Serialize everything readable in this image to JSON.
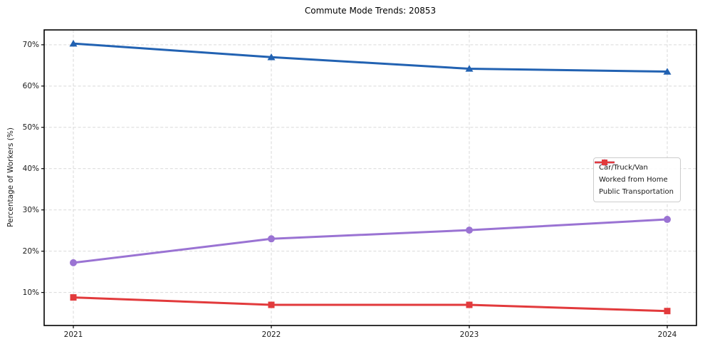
{
  "chart_data": {
    "type": "line",
    "title": "Commute Mode Trends: 20853",
    "ylabel": "Percentage of Workers (%)",
    "xlabel": "",
    "categories": [
      "2021",
      "2022",
      "2023",
      "2024"
    ],
    "series": [
      {
        "name": "Car/Truck/Van",
        "color": "#2262b2",
        "marker": "triangle",
        "values": [
          70.3,
          67.0,
          64.2,
          63.5
        ]
      },
      {
        "name": "Worked from Home",
        "color": "#9a73d3",
        "marker": "circle",
        "values": [
          17.2,
          23.0,
          25.1,
          27.7
        ]
      },
      {
        "name": "Public Transportation",
        "color": "#e23a3c",
        "marker": "square",
        "values": [
          8.8,
          7.0,
          7.0,
          5.5
        ]
      }
    ],
    "yticks": [
      {
        "v": 10,
        "label": "10%"
      },
      {
        "v": 20,
        "label": "20%"
      },
      {
        "v": 30,
        "label": "30%"
      },
      {
        "v": 40,
        "label": "40%"
      },
      {
        "v": 50,
        "label": "50%"
      },
      {
        "v": 60,
        "label": "60%"
      },
      {
        "v": 70,
        "label": "70%"
      }
    ],
    "ylim": [
      2,
      73.6
    ],
    "grid": true,
    "grid_style": "dashed",
    "legend_position": "center-right"
  },
  "styles": {
    "background": "#ffffff",
    "grid_color": "#d9d9d9",
    "spine_color": "#000000",
    "text_color": "#1a1a1a",
    "legend_border": "#cccccc"
  }
}
